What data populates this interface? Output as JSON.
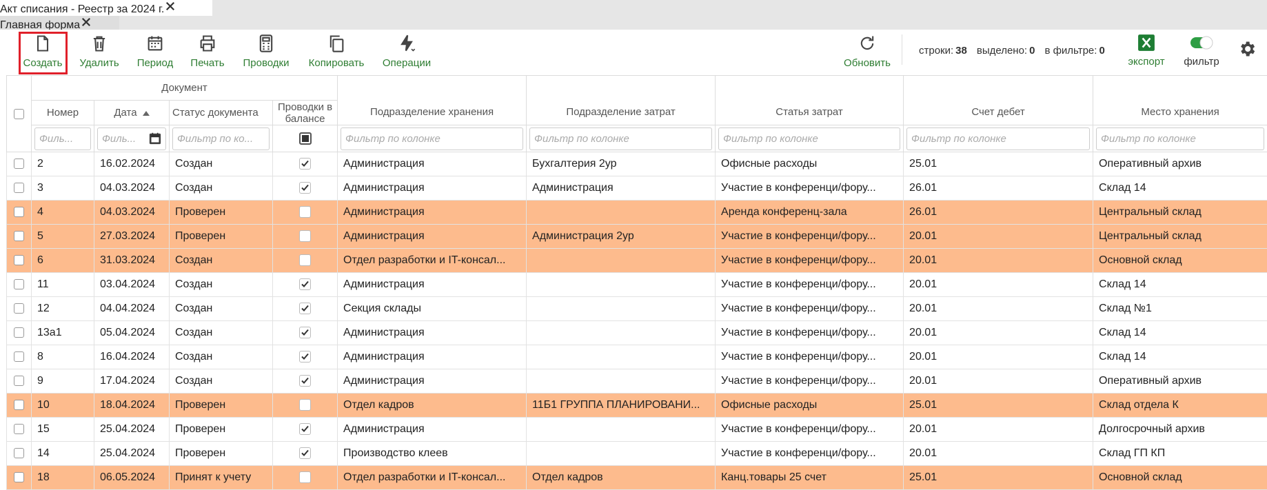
{
  "tabs": [
    {
      "title": "Акт списания - Реестр за 2024 г."
    },
    {
      "title": "Главная форма"
    }
  ],
  "toolbar": {
    "buttons": [
      "Создать",
      "Удалить",
      "Период",
      "Печать",
      "Проводки",
      "Копировать",
      "Операции"
    ],
    "refresh": "Обновить",
    "stats": [
      {
        "label": "строки:",
        "value": 38
      },
      {
        "label": "выделено:",
        "value": 0
      },
      {
        "label": "в фильтре:",
        "value": 0
      }
    ],
    "export": "экспорт",
    "filter": "фильтр"
  },
  "table": {
    "group_header": "Документ",
    "columns": [
      "Номер",
      "Дата",
      "Статус документа",
      "Проводки в балансе",
      "Подразделение хранения",
      "Подразделение затрат",
      "Статья затрат",
      "Счет дебет",
      "Место хранения"
    ],
    "filter_placeholders": [
      "Филь...",
      "Филь...",
      "Фильтр по ко...",
      null,
      "Фильтр по колонке",
      "Фильтр по колонке",
      "Фильтр по колонке",
      "Фильтр по колонке",
      "Фильтр по колонке"
    ],
    "rows": [
      [
        "2",
        "16.02.2024",
        "Создан",
        true,
        "Администрация",
        "Бухгалтерия 2ур",
        "Офисные расходы",
        "25.01",
        "Оперативный архив"
      ],
      [
        "3",
        "04.03.2024",
        "Создан",
        true,
        "Администрация",
        "Администрация",
        "Участие в конференци/фору...",
        "26.01",
        "Склад 14"
      ],
      [
        "4",
        "04.03.2024",
        "Проверен",
        false,
        "Администрация",
        "",
        "Аренда конференц-зала",
        "26.01",
        "Центральный склад"
      ],
      [
        "5",
        "27.03.2024",
        "Проверен",
        false,
        "Администрация",
        "Администрация 2ур",
        "Участие в конференци/фору...",
        "20.01",
        "Центральный склад"
      ],
      [
        "6",
        "31.03.2024",
        "Создан",
        false,
        "Отдел разработки и IT-консал...",
        "",
        "Участие в конференци/фору...",
        "20.01",
        "Основной склад"
      ],
      [
        "11",
        "03.04.2024",
        "Создан",
        true,
        "Администрация",
        "",
        "Участие в конференци/фору...",
        "20.01",
        "Склад 14"
      ],
      [
        "12",
        "04.04.2024",
        "Создан",
        true,
        "Секция склады",
        "",
        "Участие в конференци/фору...",
        "20.01",
        "Склад №1"
      ],
      [
        "13а1",
        "05.04.2024",
        "Создан",
        true,
        "Администрация",
        "",
        "Участие в конференци/фору...",
        "20.01",
        "Склад 14"
      ],
      [
        "8",
        "16.04.2024",
        "Создан",
        true,
        "Администрация",
        "",
        "Участие в конференци/фору...",
        "20.01",
        "Склад 14"
      ],
      [
        "9",
        "17.04.2024",
        "Создан",
        true,
        "Администрация",
        "",
        "Участие в конференци/фору...",
        "20.01",
        "Оперативный архив"
      ],
      [
        "10",
        "18.04.2024",
        "Проверен",
        false,
        "Отдел кадров",
        "11Б1 ГРУППА ПЛАНИРОВАНИ...",
        "Офисные расходы",
        "25.01",
        "Склад отдела К"
      ],
      [
        "15",
        "25.04.2024",
        "Проверен",
        true,
        "Администрация",
        "",
        "Участие в конференци/фору...",
        "20.01",
        "Долгосрочный архив"
      ],
      [
        "14",
        "25.04.2024",
        "Проверен",
        true,
        "Производство клеев",
        "",
        "Участие в конференци/фору...",
        "20.01",
        "Склад ГП КП"
      ],
      [
        "18",
        "06.05.2024",
        "Принят к учету",
        false,
        "Отдел разработки и IT-консал...",
        "Отдел кадров",
        "Канц.товары 25 счет",
        "25.01",
        "Основной склад"
      ]
    ]
  }
}
